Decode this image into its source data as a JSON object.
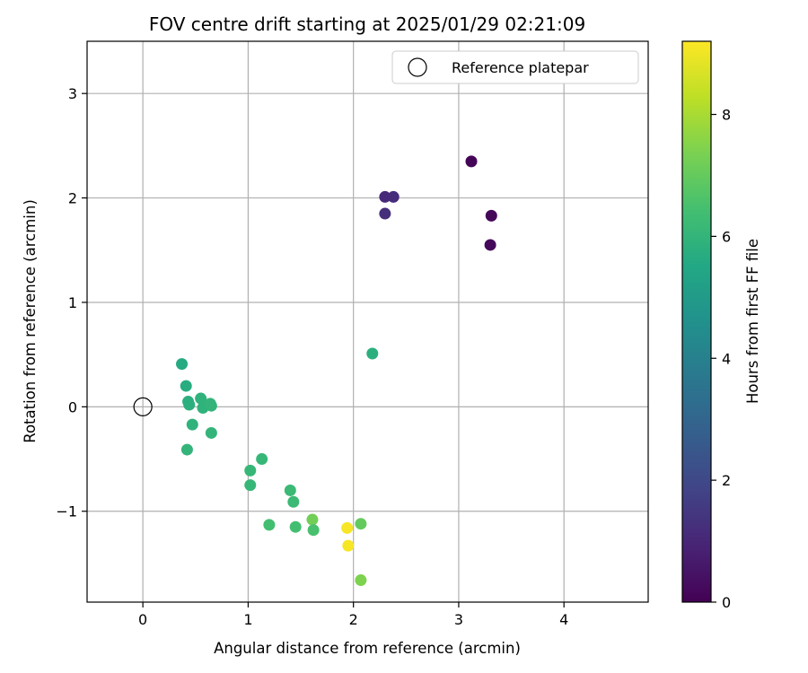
{
  "chart_data": {
    "type": "scatter",
    "title": "FOV centre drift starting at 2025/01/29 02:21:09",
    "xlabel": "Angular distance from reference (arcmin)",
    "ylabel": "Rotation from reference (arcmin)",
    "xlim": [
      -0.53,
      4.8
    ],
    "ylim": [
      -1.87,
      3.5
    ],
    "x_ticks": [
      0,
      1,
      2,
      3,
      4
    ],
    "y_ticks": [
      -1,
      0,
      1,
      2,
      3
    ],
    "grid": true,
    "legend": {
      "position": "top-right",
      "entries": [
        "Reference platepar"
      ]
    },
    "reference_point": {
      "x": 0,
      "y": 0
    },
    "colorbar": {
      "label": "Hours from first FF file",
      "colormap": "viridis",
      "range": [
        0,
        9.2
      ],
      "ticks": [
        0,
        2,
        4,
        6,
        8
      ]
    },
    "points": [
      {
        "x": 3.12,
        "y": 2.35,
        "c": 0.1
      },
      {
        "x": 3.31,
        "y": 1.83,
        "c": 0.15
      },
      {
        "x": 3.3,
        "y": 1.55,
        "c": 0.2
      },
      {
        "x": 2.3,
        "y": 2.01,
        "c": 1.1
      },
      {
        "x": 2.38,
        "y": 2.01,
        "c": 1.15
      },
      {
        "x": 2.3,
        "y": 1.85,
        "c": 1.25
      },
      {
        "x": 2.18,
        "y": 0.51,
        "c": 5.8
      },
      {
        "x": 0.37,
        "y": 0.41,
        "c": 5.6
      },
      {
        "x": 0.41,
        "y": 0.2,
        "c": 5.7
      },
      {
        "x": 0.43,
        "y": 0.05,
        "c": 5.8
      },
      {
        "x": 0.44,
        "y": 0.02,
        "c": 5.8
      },
      {
        "x": 0.55,
        "y": 0.08,
        "c": 5.9
      },
      {
        "x": 0.57,
        "y": -0.01,
        "c": 5.9
      },
      {
        "x": 0.64,
        "y": 0.03,
        "c": 6.0
      },
      {
        "x": 0.65,
        "y": 0.01,
        "c": 6.0
      },
      {
        "x": 0.47,
        "y": -0.17,
        "c": 5.9
      },
      {
        "x": 0.65,
        "y": -0.25,
        "c": 6.0
      },
      {
        "x": 0.42,
        "y": -0.41,
        "c": 6.0
      },
      {
        "x": 1.02,
        "y": -0.61,
        "c": 6.1
      },
      {
        "x": 1.13,
        "y": -0.5,
        "c": 6.1
      },
      {
        "x": 1.02,
        "y": -0.75,
        "c": 6.1
      },
      {
        "x": 1.4,
        "y": -0.8,
        "c": 6.2
      },
      {
        "x": 1.43,
        "y": -0.91,
        "c": 6.2
      },
      {
        "x": 1.2,
        "y": -1.13,
        "c": 6.4
      },
      {
        "x": 1.45,
        "y": -1.15,
        "c": 6.4
      },
      {
        "x": 1.61,
        "y": -1.08,
        "c": 7.2
      },
      {
        "x": 1.62,
        "y": -1.18,
        "c": 6.5
      },
      {
        "x": 2.07,
        "y": -1.12,
        "c": 7.0
      },
      {
        "x": 2.07,
        "y": -1.66,
        "c": 7.4
      },
      {
        "x": 1.94,
        "y": -1.16,
        "c": 9.1
      },
      {
        "x": 1.95,
        "y": -1.33,
        "c": 9.1
      }
    ]
  }
}
